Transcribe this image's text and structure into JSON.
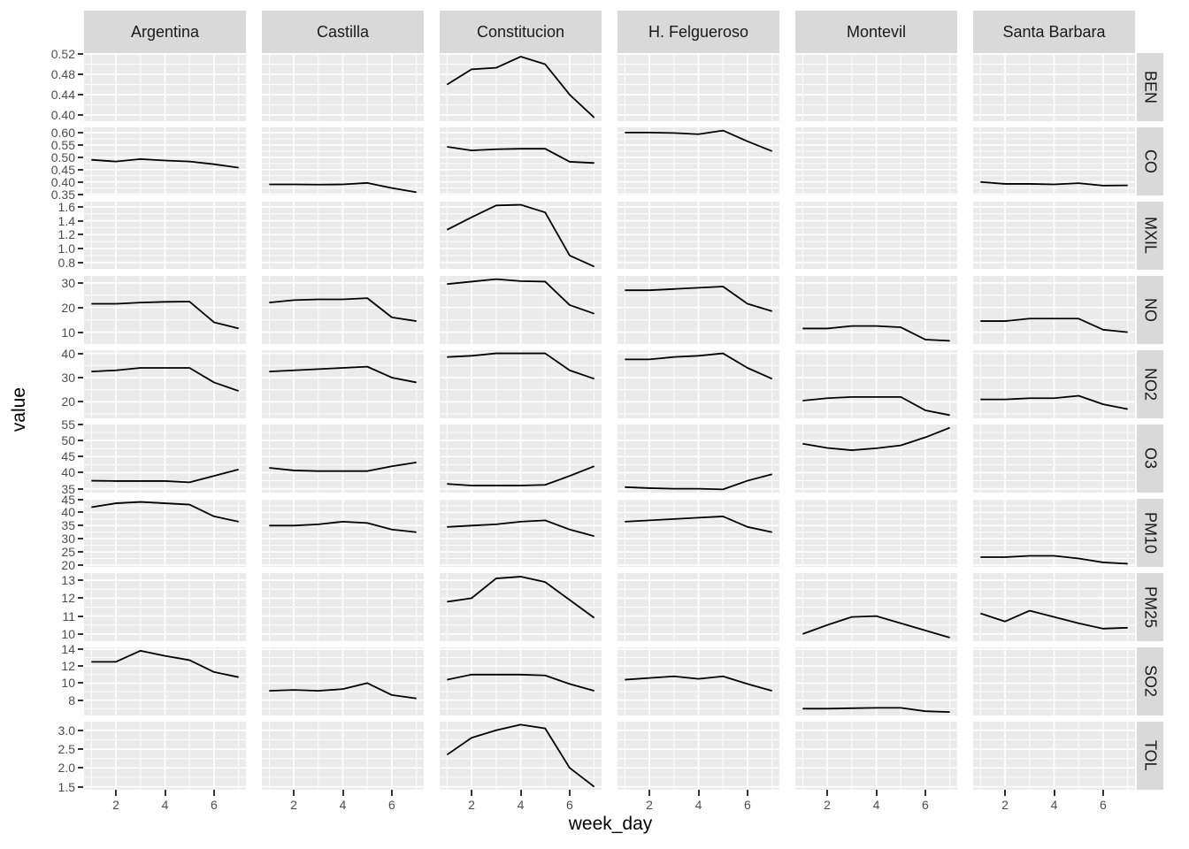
{
  "chart_data": {
    "type": "line",
    "title": "",
    "xlabel": "week_day",
    "ylabel": "value",
    "legend": "none",
    "grid": "on",
    "x": [
      1,
      2,
      3,
      4,
      5,
      6,
      7
    ],
    "x_ticks": [
      2,
      4,
      6
    ],
    "x_tick_labels": [
      "2",
      "4",
      "6"
    ],
    "xlim": [
      0.7,
      7.3
    ],
    "columns": [
      "Argentina",
      "Castilla",
      "Constitucion",
      "H. Felgueroso",
      "Montevil",
      "Santa Barbara"
    ],
    "colors": {
      "panel_background": "#EBEBEB",
      "strip_background": "#D9D9D9",
      "gridline": "#FFFFFF",
      "line": "#000000",
      "tick_text": "#4d4d4d",
      "strip_text": "#1a1a1a"
    },
    "rows": [
      {
        "label": "BEN",
        "ticks": [
          0.4,
          0.44,
          0.48,
          0.52
        ],
        "tick_labels": [
          "0.40",
          "0.44",
          "0.48",
          "0.52"
        ],
        "ylim": [
          0.388,
          0.522
        ],
        "series": {
          "Argentina": null,
          "Castilla": null,
          "Constitucion": [
            0.46,
            0.49,
            0.493,
            0.515,
            0.5,
            0.44,
            0.395
          ],
          "H. Felgueroso": null,
          "Montevil": null,
          "Santa Barbara": null
        }
      },
      {
        "label": "CO",
        "ticks": [
          0.35,
          0.4,
          0.45,
          0.5,
          0.55,
          0.6
        ],
        "tick_labels": [
          "0.35",
          "0.40",
          "0.45",
          "0.50",
          "0.55",
          "0.60"
        ],
        "ylim": [
          0.345,
          0.622
        ],
        "series": {
          "Argentina": [
            0.49,
            0.483,
            0.493,
            0.487,
            0.483,
            0.472,
            0.458
          ],
          "Castilla": [
            0.39,
            0.39,
            0.389,
            0.39,
            0.396,
            0.375,
            0.358
          ],
          "Constitucion": [
            0.543,
            0.528,
            0.533,
            0.535,
            0.535,
            0.482,
            0.477
          ],
          "H. Felgueroso": [
            0.601,
            0.601,
            0.599,
            0.594,
            0.609,
            0.565,
            0.525
          ],
          "Montevil": null,
          "Santa Barbara": [
            0.4,
            0.392,
            0.392,
            0.39,
            0.395,
            0.385,
            0.386
          ]
        }
      },
      {
        "label": "MXIL",
        "ticks": [
          0.8,
          1.0,
          1.2,
          1.4,
          1.6
        ],
        "tick_labels": [
          "0.8",
          "1.0",
          "1.2",
          "1.4",
          "1.6"
        ],
        "ylim": [
          0.695,
          1.675
        ],
        "series": {
          "Argentina": null,
          "Castilla": null,
          "Constitucion": [
            1.27,
            1.45,
            1.62,
            1.63,
            1.52,
            0.9,
            0.74
          ],
          "H. Felgueroso": null,
          "Montevil": null,
          "Santa Barbara": null
        }
      },
      {
        "label": "NO",
        "ticks": [
          10,
          20,
          30
        ],
        "tick_labels": [
          "10",
          "20",
          "30"
        ],
        "ylim": [
          5.2,
          32.8
        ],
        "series": {
          "Argentina": [
            21.5,
            21.5,
            22.0,
            22.3,
            22.4,
            14.0,
            11.5
          ],
          "Castilla": [
            22.0,
            23.0,
            23.3,
            23.3,
            23.8,
            16.0,
            14.5
          ],
          "Constitucion": [
            29.5,
            30.5,
            31.5,
            30.7,
            30.5,
            21.0,
            17.5
          ],
          "H. Felgueroso": [
            27.0,
            27.0,
            27.5,
            28.0,
            28.5,
            21.5,
            18.5
          ],
          "Montevil": [
            11.5,
            11.5,
            12.5,
            12.5,
            12.0,
            7.0,
            6.5
          ],
          "Santa Barbara": [
            14.5,
            14.5,
            15.5,
            15.5,
            15.5,
            11.0,
            10.0
          ]
        }
      },
      {
        "label": "NO2",
        "ticks": [
          20,
          30,
          40
        ],
        "tick_labels": [
          "20",
          "30",
          "40"
        ],
        "ylim": [
          13.2,
          41.3
        ],
        "series": {
          "Argentina": [
            32.5,
            33.0,
            34.0,
            34.0,
            34.0,
            28.0,
            24.5
          ],
          "Castilla": [
            32.5,
            33.0,
            33.5,
            34.0,
            34.5,
            30.0,
            28.0
          ],
          "Constitucion": [
            38.5,
            39.0,
            40.0,
            40.0,
            40.0,
            33.0,
            29.5
          ],
          "H. Felgueroso": [
            37.5,
            37.5,
            38.5,
            39.0,
            40.0,
            34.0,
            29.5
          ],
          "Montevil": [
            20.5,
            21.5,
            22.0,
            22.0,
            22.0,
            16.5,
            14.5
          ],
          "Santa Barbara": [
            21.0,
            21.0,
            21.5,
            21.5,
            22.5,
            19.0,
            17.0
          ]
        }
      },
      {
        "label": "O3",
        "ticks": [
          35,
          40,
          45,
          50,
          55
        ],
        "tick_labels": [
          "35",
          "40",
          "45",
          "50",
          "55"
        ],
        "ylim": [
          33.8,
          55.0
        ],
        "series": {
          "Argentina": [
            37.5,
            37.4,
            37.4,
            37.4,
            37.0,
            39.0,
            41.0
          ],
          "Castilla": [
            41.5,
            40.7,
            40.5,
            40.5,
            40.5,
            42.0,
            43.2
          ],
          "Constitucion": [
            36.5,
            36.0,
            36.0,
            36.0,
            36.2,
            39.0,
            42.0
          ],
          "H. Felgueroso": [
            35.5,
            35.2,
            35.0,
            35.0,
            34.8,
            37.5,
            39.5
          ],
          "Montevil": [
            49.0,
            47.7,
            47.0,
            47.6,
            48.5,
            51.0,
            54.0
          ],
          "Santa Barbara": null
        }
      },
      {
        "label": "PM10",
        "ticks": [
          20,
          25,
          30,
          35,
          40,
          45
        ],
        "tick_labels": [
          "20",
          "25",
          "30",
          "35",
          "40",
          "45"
        ],
        "ylim": [
          19.3,
          45.2
        ],
        "series": {
          "Argentina": [
            42.0,
            43.5,
            44.0,
            43.5,
            43.0,
            38.5,
            36.5
          ],
          "Castilla": [
            35.0,
            35.0,
            35.5,
            36.5,
            36.0,
            33.5,
            32.5
          ],
          "Constitucion": [
            34.5,
            35.0,
            35.5,
            36.5,
            37.0,
            33.5,
            31.0
          ],
          "H. Felgueroso": [
            36.5,
            37.0,
            37.5,
            38.0,
            38.5,
            34.5,
            32.5
          ],
          "Montevil": null,
          "Santa Barbara": [
            23.0,
            23.0,
            23.5,
            23.5,
            22.5,
            21.0,
            20.5
          ]
        }
      },
      {
        "label": "PM25",
        "ticks": [
          10,
          11,
          12,
          13
        ],
        "tick_labels": [
          "10",
          "11",
          "12",
          "13"
        ],
        "ylim": [
          9.6,
          13.4
        ],
        "series": {
          "Argentina": null,
          "Castilla": null,
          "Constitucion": [
            11.8,
            12.0,
            13.1,
            13.2,
            12.9,
            11.9,
            10.9
          ],
          "H. Felgueroso": null,
          "Montevil": [
            10.0,
            10.5,
            10.95,
            11.0,
            10.6,
            10.2,
            9.8
          ],
          "Santa Barbara": [
            11.15,
            10.7,
            11.3,
            10.95,
            10.6,
            10.3,
            10.35
          ]
        }
      },
      {
        "label": "SO2",
        "ticks": [
          8,
          10,
          12,
          14
        ],
        "tick_labels": [
          "8",
          "10",
          "12",
          "14"
        ],
        "ylim": [
          6.2,
          14.2
        ],
        "series": {
          "Argentina": [
            12.5,
            12.5,
            13.8,
            13.2,
            12.7,
            11.3,
            10.7
          ],
          "Castilla": [
            9.1,
            9.2,
            9.1,
            9.3,
            10.0,
            8.6,
            8.2
          ],
          "Constitucion": [
            10.4,
            11.0,
            11.0,
            11.0,
            10.9,
            9.9,
            9.1
          ],
          "H. Felgueroso": [
            10.4,
            10.6,
            10.8,
            10.5,
            10.8,
            9.9,
            9.1
          ],
          "Montevil": [
            7.0,
            7.0,
            7.05,
            7.1,
            7.1,
            6.7,
            6.6
          ],
          "Santa Barbara": null
        }
      },
      {
        "label": "TOL",
        "ticks": [
          1.5,
          2.0,
          2.5,
          3.0
        ],
        "tick_labels": [
          "1.5",
          "2.0",
          "2.5",
          "3.0"
        ],
        "ylim": [
          1.42,
          3.23
        ],
        "series": {
          "Argentina": null,
          "Castilla": null,
          "Constitucion": [
            2.35,
            2.8,
            3.0,
            3.15,
            3.05,
            2.0,
            1.5
          ],
          "H. Felgueroso": null,
          "Montevil": null,
          "Santa Barbara": null
        }
      }
    ]
  }
}
